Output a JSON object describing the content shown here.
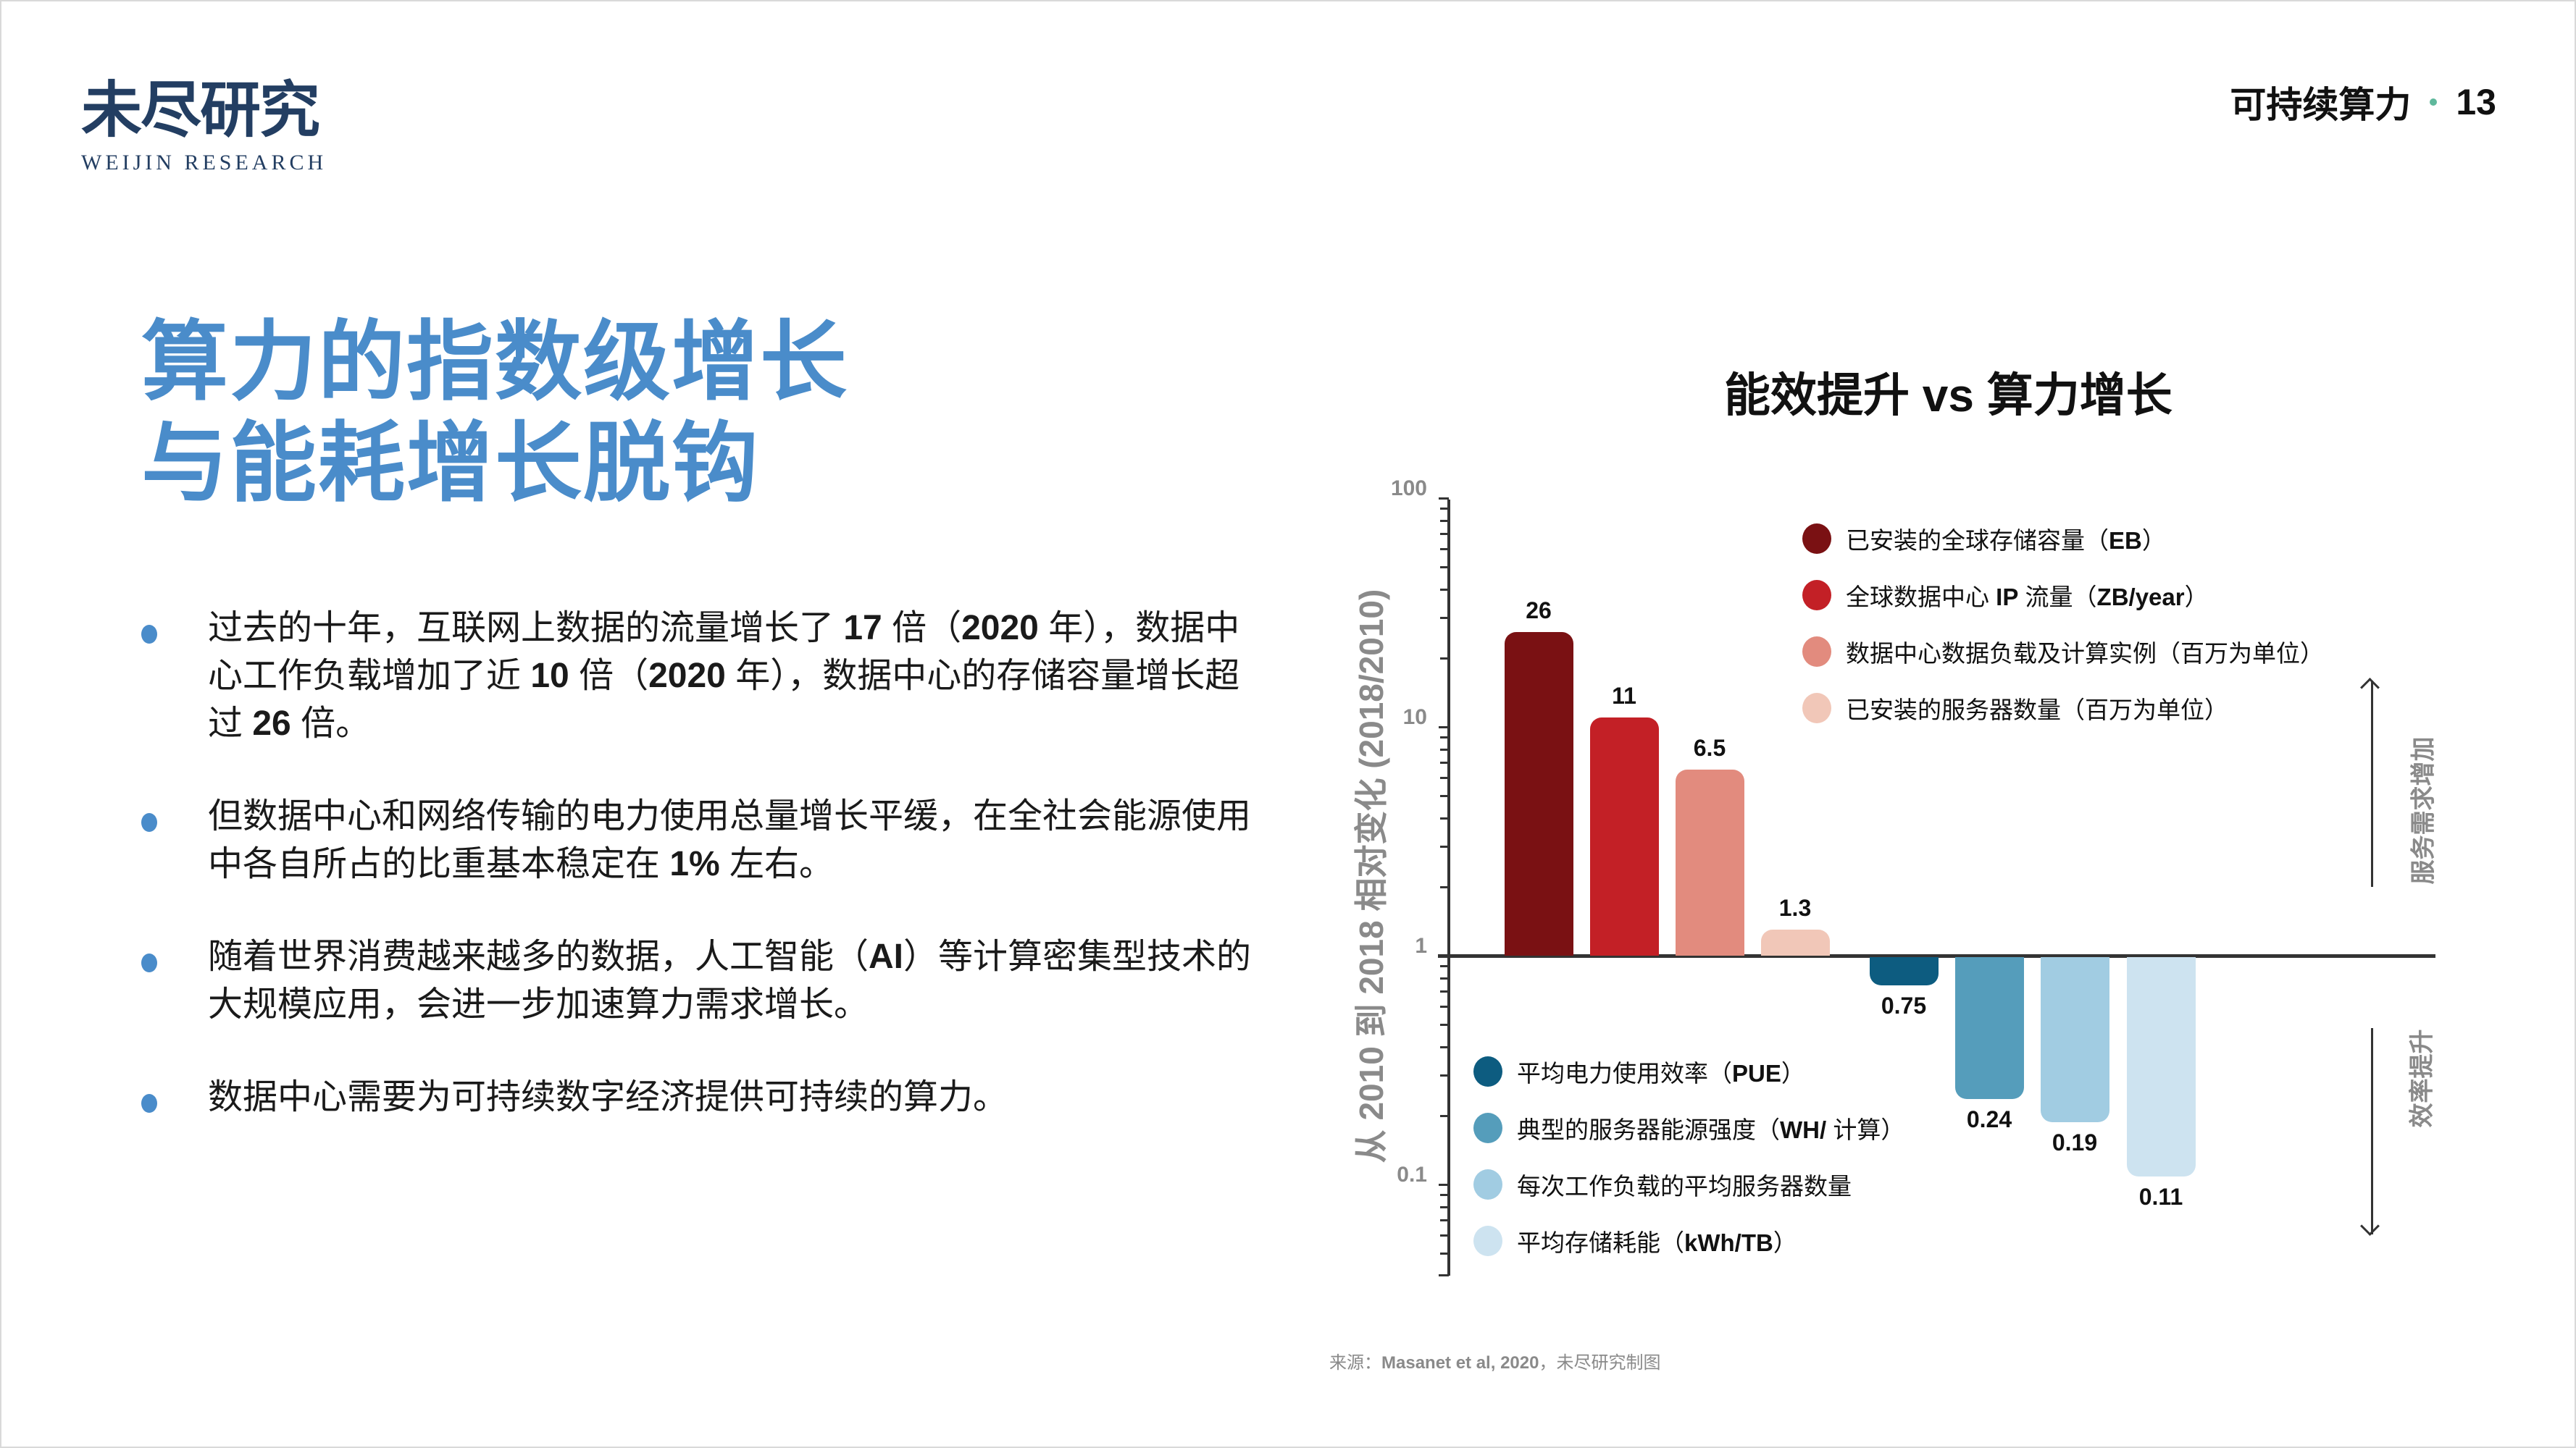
{
  "header": {
    "logo_cn": "未尽研究",
    "logo_en": "WEIJIN RESEARCH",
    "section": "可持续算力",
    "page_number": "13",
    "accent_dot_color": "#5fb89c"
  },
  "title": {
    "line1": "算力的指数级增长",
    "line2": "与能耗增长脱钩",
    "color": "#4a8cca"
  },
  "bullets": [
    {
      "parts": [
        {
          "t": "过去的十年，互联网上数据的流量增长了 "
        },
        {
          "t": "17",
          "b": true
        },
        {
          "t": " 倍（"
        },
        {
          "t": "2020",
          "b": true
        },
        {
          "t": " 年），数据中心工作负载增加了近 "
        },
        {
          "t": "10",
          "b": true
        },
        {
          "t": " 倍（"
        },
        {
          "t": "2020",
          "b": true
        },
        {
          "t": " 年），数据中心的存储容量增长超过 "
        },
        {
          "t": "26",
          "b": true
        },
        {
          "t": " 倍。"
        }
      ]
    },
    {
      "parts": [
        {
          "t": "但数据中心和网络传输的电力使用总量增长平缓，在全社会能源使用中各自所占的比重基本稳定在 "
        },
        {
          "t": "1%",
          "b": true
        },
        {
          "t": " 左右。"
        }
      ]
    },
    {
      "parts": [
        {
          "t": "随着世界消费越来越多的数据，人工智能（"
        },
        {
          "t": "AI",
          "b": true
        },
        {
          "t": "）等计算密集型技术的大规模应用，会进一步加速算力需求增长。"
        }
      ]
    },
    {
      "parts": [
        {
          "t": "数据中心需要为可持续数字经济提供可持续的算力。"
        }
      ]
    }
  ],
  "chart_data": {
    "type": "bar",
    "title": "能效提升 vs 算力增长",
    "ylabel": "从 2010 到 2018 相对变化 (2018/2010)",
    "xlabel": "",
    "yscale": "log",
    "ylim": [
      0.05,
      100
    ],
    "baseline": 1,
    "yticks": [
      100,
      10,
      1,
      0.1
    ],
    "ytick_labels": [
      "100",
      "10",
      "1",
      "0.1"
    ],
    "grid": false,
    "categories": [
      "已安装的全球存储容量（EB）",
      "全球数据中心 IP 流量（ZB/year）",
      "数据中心数据负载及计算实例（百万为单位）",
      "已安装的服务器数量（百万为单位）",
      "平均电力使用效率（PUE）",
      "典型的服务器能源强度（WH/ 计算）",
      "每次工作负载的平均服务器数量",
      "平均存储耗能（kWh/TB）"
    ],
    "values": [
      26,
      11,
      6.5,
      1.3,
      0.75,
      0.24,
      0.19,
      0.11
    ],
    "value_labels": [
      "26",
      "11",
      "6.5",
      "1.3",
      "0.75",
      "0.24",
      "0.19",
      "0.11"
    ],
    "colors": [
      "#7a1113",
      "#c32026",
      "#e28b7e",
      "#f1c7b8",
      "#0d5c80",
      "#559dbb",
      "#a1cce2",
      "#cde3f0"
    ],
    "legend_upper": [
      {
        "label": "已安装的全球存储容量",
        "unit": "EB",
        "color": "#7a1113"
      },
      {
        "label": "全球数据中心 ",
        "bold_mid": "IP",
        "label_after": " 流量",
        "unit": "ZB/year",
        "color": "#c32026"
      },
      {
        "label": "数据中心数据负载及计算实例（百万为单位）",
        "color": "#e28b7e"
      },
      {
        "label": "已安装的服务器数量（百万为单位）",
        "color": "#f1c7b8"
      }
    ],
    "legend_lower": [
      {
        "label": "平均电力使用效率",
        "unit": "PUE",
        "color": "#0d5c80"
      },
      {
        "label": "典型的服务器能源强度",
        "unit": "WH/",
        "unit_after": " 计算",
        "color": "#559dbb"
      },
      {
        "label": "每次工作负载的平均服务器数量",
        "color": "#a1cce2"
      },
      {
        "label": "平均存储耗能",
        "unit": "kWh/TB",
        "color": "#cde3f0"
      }
    ],
    "annotations": {
      "up_arrow": "服务需求增加",
      "down_arrow": "效率提升"
    },
    "legend_position": "inside, top-right (growth) and bottom-left (efficiency)"
  },
  "source": {
    "prefix": "来源：",
    "ref": "Masanet et al, 2020",
    "suffix": "，未尽研究制图"
  }
}
